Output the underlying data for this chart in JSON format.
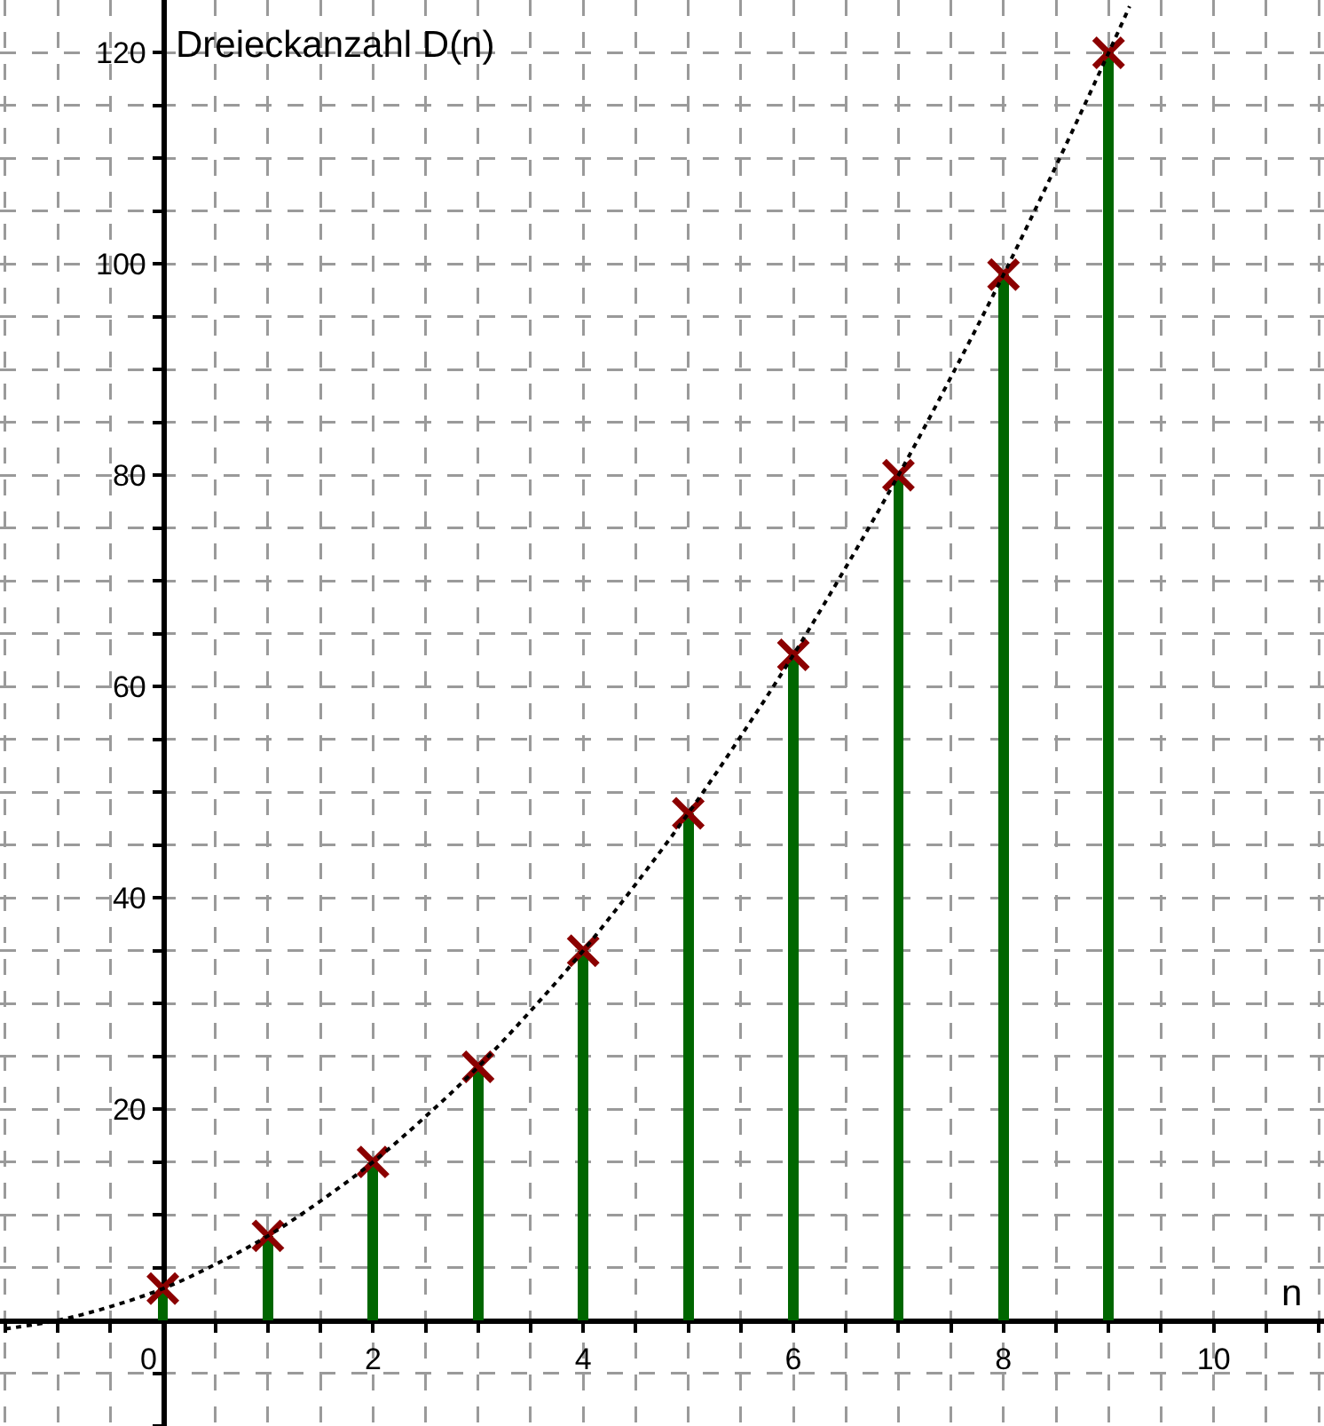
{
  "chart_data": {
    "type": "bar",
    "xlabel": "n",
    "ylabel": "Dreieckanzahl D(n)",
    "x": [
      0,
      1,
      2,
      3,
      4,
      5,
      6,
      7,
      8,
      9
    ],
    "series": [
      {
        "color": "#006600",
        "values": [
          3,
          8,
          15,
          24,
          35,
          48,
          63,
          80,
          99,
          120
        ]
      },
      {
        "type": "scatter",
        "color": "#8b0000",
        "marker": "cross",
        "values": [
          3,
          8,
          15,
          24,
          35,
          48,
          63,
          80,
          99,
          120
        ]
      },
      {
        "type": "line",
        "color": "#000000",
        "line_style": "dotted",
        "x": [
          -1.5,
          -1,
          -0.5,
          0,
          0.5,
          1,
          1.5,
          2,
          2.5,
          3,
          3.5,
          4,
          4.5,
          5,
          5.5,
          6,
          6.5,
          7,
          7.5,
          8,
          8.5,
          9,
          9.2
        ],
        "values": [
          -0.8,
          0,
          1.3,
          3,
          5.3,
          8,
          11.3,
          15,
          19.3,
          24,
          29.3,
          35,
          41.3,
          48,
          55.3,
          63,
          71.3,
          80,
          89.3,
          99,
          109.3,
          120,
          124.4
        ]
      }
    ],
    "xlim": [
      -1.55,
      11.05
    ],
    "ylim": [
      -10,
      125
    ],
    "xticks": [
      {
        "value": -1.5,
        "label": null
      },
      {
        "value": -1,
        "label": null
      },
      {
        "value": -0.5,
        "label": null
      },
      0,
      {
        "value": 0.5,
        "label": null
      },
      {
        "value": 1,
        "label": null
      },
      {
        "value": 1.5,
        "label": null
      },
      2,
      {
        "value": 2.5,
        "label": null
      },
      {
        "value": 3,
        "label": null
      },
      {
        "value": 3.5,
        "label": null
      },
      4,
      {
        "value": 4.5,
        "label": null
      },
      {
        "value": 5,
        "label": null
      },
      {
        "value": 5.5,
        "label": null
      },
      6,
      {
        "value": 6.5,
        "label": null
      },
      {
        "value": 7,
        "label": null
      },
      {
        "value": 7.5,
        "label": null
      },
      8,
      {
        "value": 8.5,
        "label": null
      },
      {
        "value": 9,
        "label": null
      },
      {
        "value": 9.5,
        "label": null
      },
      10,
      {
        "value": 10.5,
        "label": null
      },
      {
        "value": 11,
        "label": null
      }
    ],
    "yticks": [
      {
        "value": -10,
        "label": null
      },
      {
        "value": -5,
        "label": null
      },
      {
        "value": 0,
        "label": null
      },
      {
        "value": 5,
        "label": null
      },
      {
        "value": 10,
        "label": null
      },
      {
        "value": 15,
        "label": null
      },
      20,
      {
        "value": 25,
        "label": null
      },
      {
        "value": 30,
        "label": null
      },
      {
        "value": 35,
        "label": null
      },
      40,
      {
        "value": 45,
        "label": null
      },
      {
        "value": 50,
        "label": null
      },
      {
        "value": 55,
        "label": null
      },
      60,
      {
        "value": 65,
        "label": null
      },
      {
        "value": 70,
        "label": null
      },
      {
        "value": 75,
        "label": null
      },
      80,
      {
        "value": 85,
        "label": null
      },
      {
        "value": 90,
        "label": null
      },
      {
        "value": 95,
        "label": null
      },
      100,
      {
        "value": 105,
        "label": null
      },
      {
        "value": 110,
        "label": null
      },
      {
        "value": 115,
        "label": null
      },
      120
    ],
    "grid": true
  }
}
